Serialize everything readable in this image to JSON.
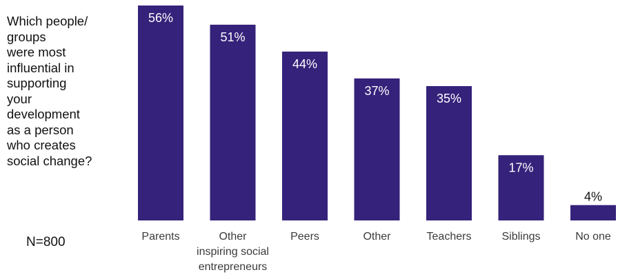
{
  "question": "Which people/\ngroups\nwere most\ninfluential in\nsupporting\nyour\ndevelopment\nas a person\nwho creates\nsocial change?",
  "sample_size": "N=800",
  "colors": {
    "bar": "#35227a",
    "label_inside": "#ffffff",
    "label_outside": "#111111"
  },
  "chart_data": {
    "type": "bar",
    "title": "",
    "xlabel": "",
    "ylabel": "",
    "ylim": [
      0,
      56
    ],
    "grid": false,
    "categories": [
      "Parents",
      "Other inspiring social entrepreneurs",
      "Peers",
      "Other",
      "Teachers",
      "Siblings",
      "No one"
    ],
    "category_lines": [
      [
        "Parents"
      ],
      [
        "Other",
        "inspiring social",
        "entrepreneurs"
      ],
      [
        "Peers"
      ],
      [
        "Other"
      ],
      [
        "Teachers"
      ],
      [
        "Siblings"
      ],
      [
        "No one"
      ]
    ],
    "values": [
      56,
      51,
      44,
      37,
      35,
      17,
      4
    ],
    "data_labels": [
      "56%",
      "51%",
      "44%",
      "37%",
      "35%",
      "17%",
      "4%"
    ]
  }
}
